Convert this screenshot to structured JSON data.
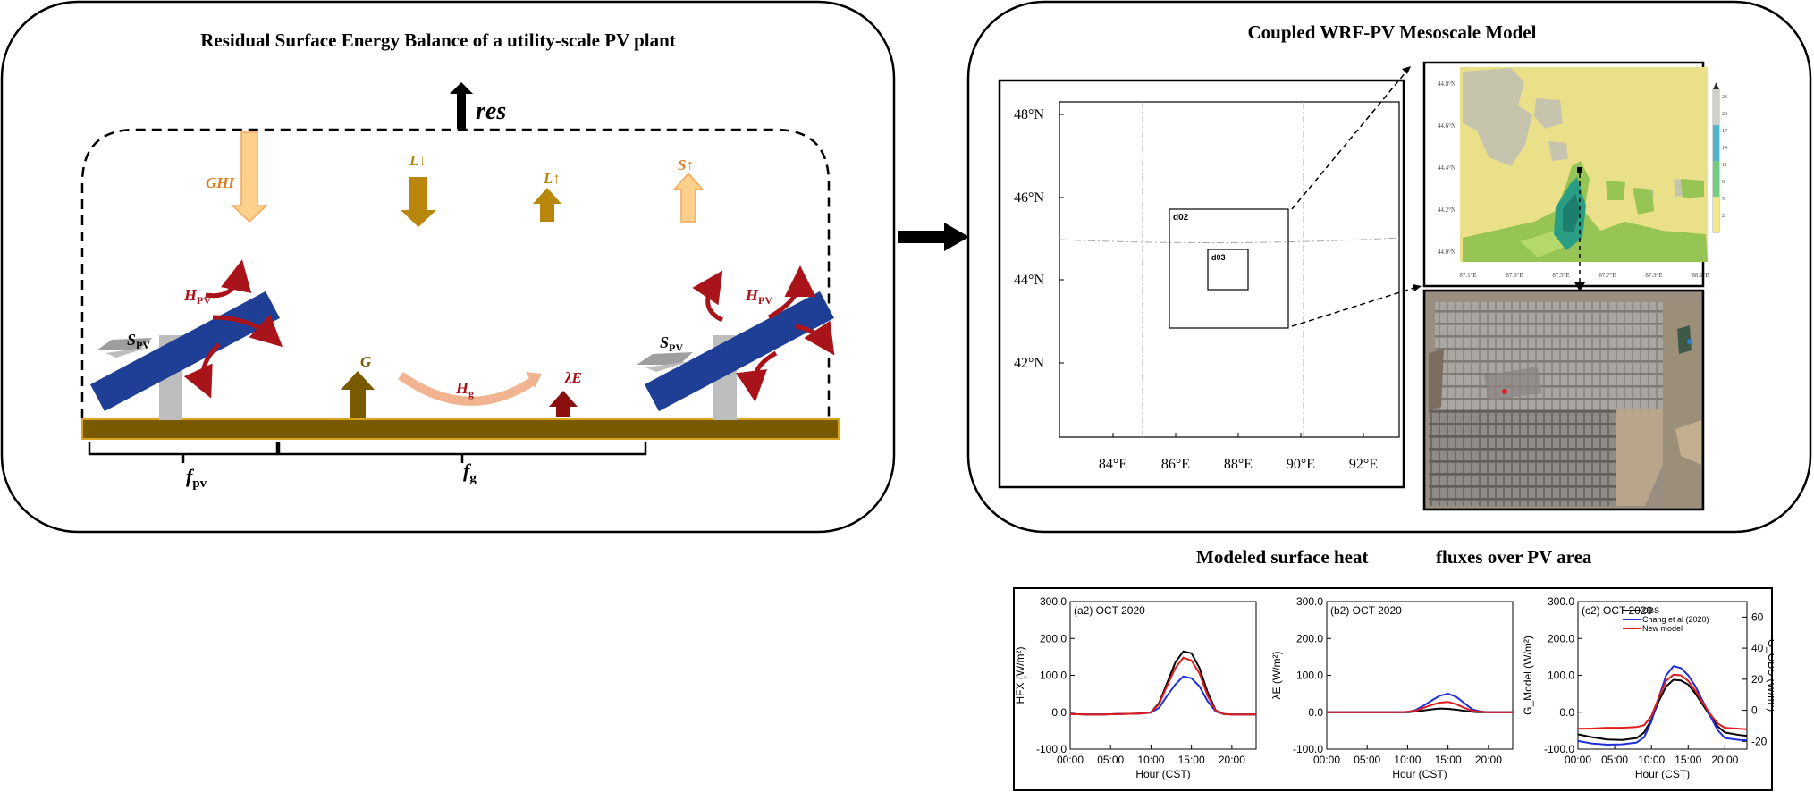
{
  "left_panel": {
    "title": "Residual Surface Energy Balance of a utility-scale PV plant",
    "res": "res",
    "ghi": "GHI",
    "l_down": "L↓",
    "l_up": "L↑",
    "s_up": "S↑",
    "h": "H",
    "pv_sub": "PV",
    "s": "S",
    "g": "G",
    "hg_sub": "g",
    "lambda_e": "λE",
    "f": "f",
    "fpv_sub": "pv",
    "fg_sub": "g"
  },
  "right_panel": {
    "title": "Coupled WRF-PV Mesoscale Model",
    "domain_map": {
      "lat_labels": [
        "48°N",
        "46°N",
        "44°N",
        "42°N"
      ],
      "lon_labels": [
        "84°E",
        "86°E",
        "88°E",
        "90°E",
        "92°E"
      ],
      "d02": "d02",
      "d03": "d03"
    },
    "landuse_map": {
      "lat_labels": [
        "44.8°N",
        "44.6°N",
        "44.4°N",
        "44.2°N",
        "44.0°N"
      ],
      "lon_labels": [
        "87.1°E",
        "87.3°E",
        "87.5°E",
        "87.7°E",
        "87.9°E",
        "88.1°E"
      ],
      "colorbar_labels": [
        "23",
        "20",
        "17",
        "14",
        "11",
        "8",
        "5",
        "2"
      ]
    }
  },
  "bottom_panel": {
    "title_left": "Modeled surface heat",
    "title_right": "fluxes over PV area",
    "legend": [
      "OBS",
      "Chang et al (2020)",
      "New model"
    ],
    "series_colors": {
      "obs": "#000000",
      "chang": "#1f2fd6",
      "new": "#e01b1b"
    }
  },
  "chart_data": [
    {
      "type": "line",
      "panel_label": "(a2) OCT 2020",
      "xlabel": "Hour (CST)",
      "ylabel": "HFX (W/m²)",
      "x_ticks": [
        "00:00",
        "05:00",
        "10:00",
        "15:00",
        "20:00"
      ],
      "y_ticks": [
        "300.0",
        "200.0",
        "100.0",
        "0.0",
        "-100.0"
      ],
      "xlim": [
        0,
        23
      ],
      "ylim": [
        -100,
        300
      ],
      "x": [
        0,
        2,
        4,
        6,
        8,
        9,
        10,
        11,
        12,
        13,
        14,
        15,
        16,
        17,
        18,
        19,
        20,
        22,
        23
      ],
      "series": [
        {
          "key": "obs",
          "values": [
            -5,
            -6,
            -6,
            -5,
            -4,
            -3,
            0,
            25,
            80,
            135,
            165,
            160,
            120,
            55,
            5,
            -5,
            -6,
            -6,
            -6
          ]
        },
        {
          "key": "chang",
          "values": [
            -5,
            -6,
            -6,
            -5,
            -4,
            -3,
            -1,
            12,
            45,
            75,
            97,
            92,
            70,
            30,
            2,
            -5,
            -6,
            -6,
            -6
          ]
        },
        {
          "key": "new",
          "values": [
            -5,
            -6,
            -6,
            -5,
            -4,
            -3,
            0,
            22,
            72,
            120,
            148,
            140,
            105,
            45,
            4,
            -5,
            -6,
            -6,
            -6
          ]
        }
      ]
    },
    {
      "type": "line",
      "panel_label": "(b2) OCT 2020",
      "xlabel": "Hour (CST)",
      "ylabel": "λE (W/m²)",
      "x_ticks": [
        "00:00",
        "05:00",
        "10:00",
        "15:00",
        "20:00"
      ],
      "y_ticks": [
        "300.0",
        "200.0",
        "100.0",
        "0.0",
        "-100.0"
      ],
      "xlim": [
        0,
        23
      ],
      "ylim": [
        -100,
        300
      ],
      "x": [
        0,
        2,
        4,
        6,
        8,
        9,
        10,
        11,
        12,
        13,
        14,
        15,
        16,
        17,
        18,
        19,
        20,
        22,
        23
      ],
      "series": [
        {
          "key": "obs",
          "values": [
            0,
            0,
            0,
            0,
            0,
            0,
            0,
            2,
            5,
            8,
            10,
            9,
            7,
            4,
            1,
            0,
            0,
            0,
            0
          ]
        },
        {
          "key": "chang",
          "values": [
            0,
            0,
            0,
            0,
            0,
            0,
            1,
            6,
            18,
            32,
            45,
            50,
            42,
            25,
            8,
            2,
            0,
            0,
            0
          ]
        },
        {
          "key": "new",
          "values": [
            0,
            0,
            0,
            0,
            0,
            0,
            1,
            4,
            12,
            20,
            26,
            28,
            22,
            12,
            4,
            1,
            0,
            0,
            0
          ]
        }
      ]
    },
    {
      "type": "line",
      "panel_label": "(c2) OCT 2020",
      "xlabel": "Hour (CST)",
      "ylabel": "G_Model (W/m²)",
      "y2label": "G_OBS (W/m²)",
      "x_ticks": [
        "00:00",
        "05:00",
        "10:00",
        "15:00",
        "20:00"
      ],
      "y_ticks": [
        "300.0",
        "200.0",
        "100.0",
        "0.0",
        "-100.0"
      ],
      "y2_ticks": [
        "60",
        "40",
        "20",
        "0",
        "-20"
      ],
      "xlim": [
        0,
        23
      ],
      "ylim": [
        -100,
        300
      ],
      "x": [
        0,
        2,
        4,
        6,
        8,
        9,
        10,
        11,
        12,
        13,
        14,
        15,
        16,
        17,
        18,
        19,
        20,
        22,
        23
      ],
      "series": [
        {
          "key": "obs",
          "values": [
            -60,
            -68,
            -74,
            -75,
            -70,
            -55,
            -20,
            30,
            70,
            88,
            86,
            75,
            50,
            20,
            -10,
            -38,
            -55,
            -62,
            -64
          ]
        },
        {
          "key": "chang",
          "values": [
            -78,
            -85,
            -88,
            -87,
            -82,
            -68,
            -25,
            40,
            100,
            125,
            120,
            100,
            70,
            30,
            -10,
            -48,
            -70,
            -75,
            -76
          ]
        },
        {
          "key": "new",
          "values": [
            -45,
            -44,
            -42,
            -42,
            -40,
            -35,
            -10,
            40,
            85,
            102,
            100,
            85,
            58,
            25,
            -5,
            -30,
            -42,
            -45,
            -46
          ]
        }
      ]
    }
  ]
}
